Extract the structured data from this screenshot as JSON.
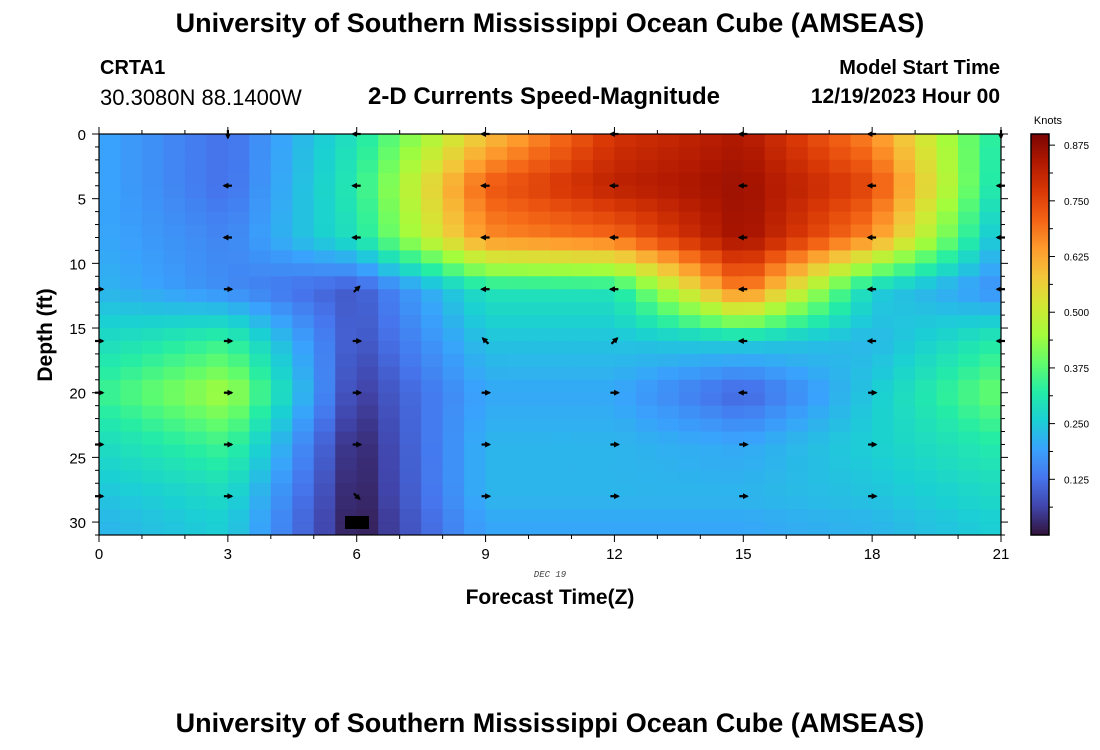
{
  "header": {
    "title": "University of Southern Mississippi Ocean Cube (AMSEAS)",
    "station": "CRTA1",
    "coords": "30.3080N  88.1400W",
    "subtitle": "2-D Currents Speed-Magnitude",
    "model_start_label": "Model Start Time",
    "model_start_value": "12/19/2023 Hour 00"
  },
  "footer": {
    "title": "University of Southern Mississippi Ocean Cube (AMSEAS)"
  },
  "chart_data": {
    "type": "heatmap",
    "xlabel": "Forecast Time(Z)",
    "ylabel": "Depth (ft)",
    "date_label": "DEC 19",
    "xlim": [
      0,
      21
    ],
    "ylim": [
      0,
      31
    ],
    "x_ticks": [
      0,
      3,
      6,
      9,
      12,
      15,
      18,
      21
    ],
    "y_ticks": [
      0,
      5,
      10,
      15,
      20,
      25,
      30
    ],
    "colorbar": {
      "label": "Knots",
      "range": [
        0,
        0.9
      ],
      "ticks": [
        "0.125",
        "0.250",
        "0.375",
        "0.500",
        "0.625",
        "0.750",
        "0.875"
      ],
      "colors": [
        "#30123b",
        "#4145ab",
        "#4675ed",
        "#39a2fc",
        "#1bcfd4",
        "#24eca6",
        "#61fc6c",
        "#a4fc3b",
        "#d1e834",
        "#f3c63a",
        "#fe9b2d",
        "#f36315",
        "#d93806",
        "#b11901",
        "#7a0403"
      ]
    },
    "time_hours": [
      0,
      3,
      6,
      9,
      12,
      15,
      18,
      21
    ],
    "depths_ft": [
      0,
      4,
      8,
      12,
      16,
      20,
      24,
      28,
      30
    ],
    "speed_knots": [
      [
        0.2,
        0.12,
        0.3,
        0.58,
        0.78,
        0.84,
        0.66,
        0.3
      ],
      [
        0.2,
        0.12,
        0.32,
        0.72,
        0.82,
        0.86,
        0.75,
        0.28
      ],
      [
        0.2,
        0.15,
        0.3,
        0.66,
        0.7,
        0.86,
        0.66,
        0.22
      ],
      [
        0.22,
        0.16,
        0.09,
        0.3,
        0.3,
        0.7,
        0.26,
        0.16
      ],
      [
        0.28,
        0.34,
        0.08,
        0.24,
        0.24,
        0.26,
        0.22,
        0.32
      ],
      [
        0.34,
        0.46,
        0.05,
        0.2,
        0.2,
        0.1,
        0.25,
        0.4
      ],
      [
        0.28,
        0.35,
        0.02,
        0.22,
        0.22,
        0.2,
        0.26,
        0.32
      ],
      [
        0.24,
        0.28,
        0.01,
        0.22,
        0.22,
        0.22,
        0.24,
        0.28
      ],
      [
        0.22,
        0.26,
        0.005,
        0.2,
        0.2,
        0.2,
        0.22,
        0.26
      ]
    ],
    "vectors": [
      {
        "t": 3,
        "d": 0,
        "dir": "S"
      },
      {
        "t": 6,
        "d": 0,
        "dir": "W"
      },
      {
        "t": 9,
        "d": 0,
        "dir": "W"
      },
      {
        "t": 12,
        "d": 0,
        "dir": "W"
      },
      {
        "t": 15,
        "d": 0,
        "dir": "W"
      },
      {
        "t": 18,
        "d": 0,
        "dir": "W"
      },
      {
        "t": 21,
        "d": 0,
        "dir": "S"
      },
      {
        "t": 3,
        "d": 4,
        "dir": "W"
      },
      {
        "t": 6,
        "d": 4,
        "dir": "W"
      },
      {
        "t": 9,
        "d": 4,
        "dir": "W"
      },
      {
        "t": 12,
        "d": 4,
        "dir": "W"
      },
      {
        "t": 15,
        "d": 4,
        "dir": "W"
      },
      {
        "t": 18,
        "d": 4,
        "dir": "W"
      },
      {
        "t": 21,
        "d": 4,
        "dir": "W"
      },
      {
        "t": 3,
        "d": 8,
        "dir": "W"
      },
      {
        "t": 6,
        "d": 8,
        "dir": "W"
      },
      {
        "t": 9,
        "d": 8,
        "dir": "W"
      },
      {
        "t": 12,
        "d": 8,
        "dir": "W"
      },
      {
        "t": 15,
        "d": 8,
        "dir": "W"
      },
      {
        "t": 18,
        "d": 8,
        "dir": "W"
      },
      {
        "t": 21,
        "d": 8,
        "dir": "W"
      },
      {
        "t": 0,
        "d": 12,
        "dir": "E"
      },
      {
        "t": 3,
        "d": 12,
        "dir": "E"
      },
      {
        "t": 6,
        "d": 12,
        "dir": "NE"
      },
      {
        "t": 9,
        "d": 12,
        "dir": "W"
      },
      {
        "t": 12,
        "d": 12,
        "dir": "W"
      },
      {
        "t": 15,
        "d": 12,
        "dir": "W"
      },
      {
        "t": 18,
        "d": 12,
        "dir": "W"
      },
      {
        "t": 21,
        "d": 12,
        "dir": "W"
      },
      {
        "t": 0,
        "d": 16,
        "dir": "E"
      },
      {
        "t": 3,
        "d": 16,
        "dir": "E"
      },
      {
        "t": 6,
        "d": 16,
        "dir": "E"
      },
      {
        "t": 9,
        "d": 16,
        "dir": "NW"
      },
      {
        "t": 12,
        "d": 16,
        "dir": "NE"
      },
      {
        "t": 15,
        "d": 16,
        "dir": "W"
      },
      {
        "t": 18,
        "d": 16,
        "dir": "W"
      },
      {
        "t": 21,
        "d": 16,
        "dir": "W"
      },
      {
        "t": 0,
        "d": 20,
        "dir": "E"
      },
      {
        "t": 3,
        "d": 20,
        "dir": "E"
      },
      {
        "t": 6,
        "d": 20,
        "dir": "E"
      },
      {
        "t": 9,
        "d": 20,
        "dir": "E"
      },
      {
        "t": 12,
        "d": 20,
        "dir": "E"
      },
      {
        "t": 15,
        "d": 20,
        "dir": "W"
      },
      {
        "t": 18,
        "d": 20,
        "dir": "E"
      },
      {
        "t": 0,
        "d": 24,
        "dir": "E"
      },
      {
        "t": 3,
        "d": 24,
        "dir": "E"
      },
      {
        "t": 6,
        "d": 24,
        "dir": "E"
      },
      {
        "t": 9,
        "d": 24,
        "dir": "E"
      },
      {
        "t": 12,
        "d": 24,
        "dir": "E"
      },
      {
        "t": 15,
        "d": 24,
        "dir": "E"
      },
      {
        "t": 18,
        "d": 24,
        "dir": "E"
      },
      {
        "t": 0,
        "d": 28,
        "dir": "E"
      },
      {
        "t": 3,
        "d": 28,
        "dir": "E"
      },
      {
        "t": 6,
        "d": 28,
        "dir": "SE"
      },
      {
        "t": 9,
        "d": 28,
        "dir": "E"
      },
      {
        "t": 12,
        "d": 28,
        "dir": "E"
      },
      {
        "t": 15,
        "d": 28,
        "dir": "E"
      },
      {
        "t": 18,
        "d": 28,
        "dir": "E"
      }
    ]
  }
}
